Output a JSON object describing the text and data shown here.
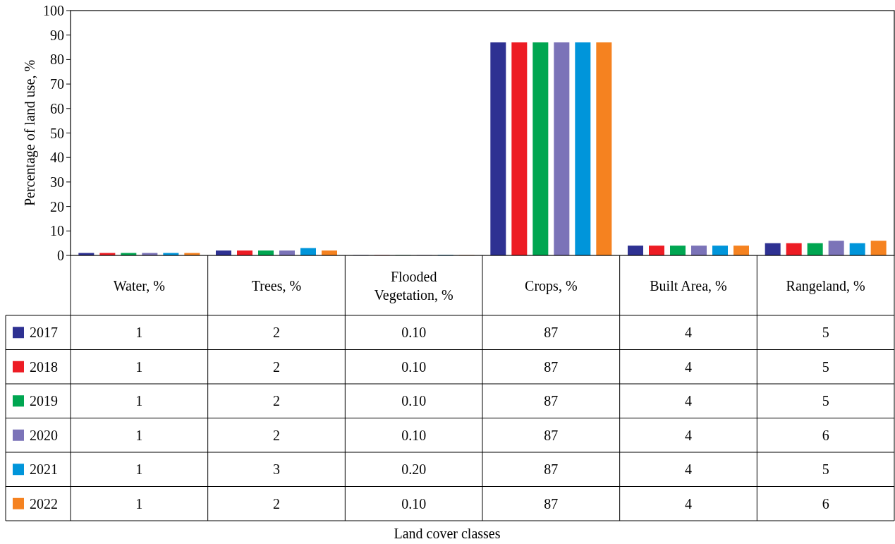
{
  "chart_data": {
    "type": "bar",
    "ylabel": "Percentage of land use, %",
    "annotations": [
      "Land cover classes"
    ],
    "categories": [
      "Water, %",
      "Trees, %",
      "Flooded Vegetation, %",
      "Crops, %",
      "Built Area, %",
      "Rangeland, %"
    ],
    "series": [
      {
        "name": "2017",
        "color": "#2e3192",
        "values": [
          1,
          2,
          0.1,
          87,
          4,
          5
        ],
        "value_labels": [
          "1",
          "2",
          "0.10",
          "87",
          "4",
          "5"
        ]
      },
      {
        "name": "2018",
        "color": "#ed1c24",
        "values": [
          1,
          2,
          0.1,
          87,
          4,
          5
        ],
        "value_labels": [
          "1",
          "2",
          "0.10",
          "87",
          "4",
          "5"
        ]
      },
      {
        "name": "2019",
        "color": "#00a651",
        "values": [
          1,
          2,
          0.1,
          87,
          4,
          5
        ],
        "value_labels": [
          "1",
          "2",
          "0.10",
          "87",
          "4",
          "5"
        ]
      },
      {
        "name": "2020",
        "color": "#7b73b8",
        "values": [
          1,
          2,
          0.1,
          87,
          4,
          6
        ],
        "value_labels": [
          "1",
          "2",
          "0.10",
          "87",
          "4",
          "6"
        ]
      },
      {
        "name": "2021",
        "color": "#0095da",
        "values": [
          1,
          3,
          0.2,
          87,
          4,
          5
        ],
        "value_labels": [
          "1",
          "3",
          "0.20",
          "87",
          "4",
          "5"
        ]
      },
      {
        "name": "2022",
        "color": "#f58220",
        "values": [
          1,
          2,
          0.1,
          87,
          4,
          6
        ],
        "value_labels": [
          "1",
          "2",
          "0.10",
          "87",
          "4",
          "6"
        ]
      }
    ],
    "ylim": [
      0,
      100
    ],
    "yticks": [
      0,
      10,
      20,
      30,
      40,
      50,
      60,
      70,
      80,
      90,
      100
    ],
    "grid": false,
    "legend": "bottom left"
  }
}
